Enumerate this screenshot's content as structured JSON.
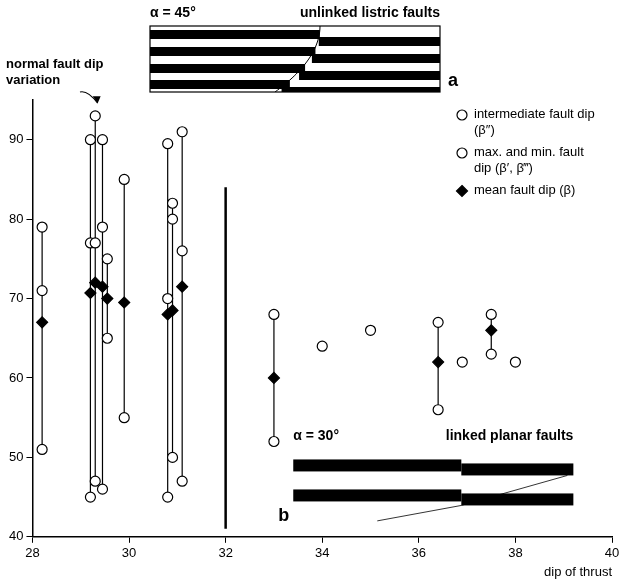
{
  "chart_data": {
    "type": "scatter",
    "x_label": "dip of thrust",
    "xlim": [
      28,
      40
    ],
    "xticks": [
      28,
      30,
      32,
      34,
      36,
      38,
      40
    ],
    "ylim": [
      40,
      95
    ],
    "yticks": [
      40,
      50,
      60,
      70,
      80,
      90
    ],
    "grid": false,
    "legend": "top right",
    "series": [
      {
        "name": "intermediate fault dip (β″)",
        "marker": "circle",
        "color": "#000000",
        "x": [
          28.2,
          29.2,
          29.3,
          29.45,
          30.8,
          30.9,
          31.1,
          34,
          35,
          36.9,
          38
        ],
        "values": [
          71,
          77,
          77,
          79,
          70,
          80,
          76,
          64,
          66,
          62,
          62
        ]
      },
      {
        "name": "max. and min. fault dip (β′, β‴)",
        "marker": "circle",
        "color": "#000000",
        "x": [
          28.2,
          28.2,
          29.2,
          29.2,
          29.3,
          29.3,
          29.45,
          29.45,
          29.55,
          29.55,
          29.9,
          29.9,
          30.8,
          30.8,
          30.9,
          30.9,
          31.1,
          31.1,
          33,
          33,
          36.4,
          36.4,
          37.5,
          37.5
        ],
        "values": [
          79,
          51,
          90,
          45,
          93,
          47,
          90,
          46,
          75,
          65,
          85,
          55,
          89.5,
          45,
          82,
          50,
          91,
          47,
          68,
          52,
          67,
          56,
          68,
          63
        ]
      },
      {
        "name": "mean fault dip (β)",
        "marker": "diamond",
        "color": "#000000",
        "x": [
          28.2,
          29.2,
          29.3,
          29.45,
          29.55,
          29.9,
          30.8,
          30.9,
          31.1,
          33,
          36.4,
          37.5
        ],
        "values": [
          67,
          70.7,
          72,
          71.5,
          70,
          69.5,
          68,
          68.5,
          71.5,
          60,
          62,
          66
        ]
      }
    ],
    "divider": {
      "x": 32,
      "y": [
        41,
        84
      ]
    },
    "annotations": [
      {
        "text": "normal fault dip variation"
      }
    ],
    "insets": [
      {
        "letter": "a",
        "alpha": "α = 45°",
        "title": "unlinked listric faults"
      },
      {
        "letter": "b",
        "alpha": "α = 30°",
        "title": "linked planar faults"
      }
    ]
  }
}
